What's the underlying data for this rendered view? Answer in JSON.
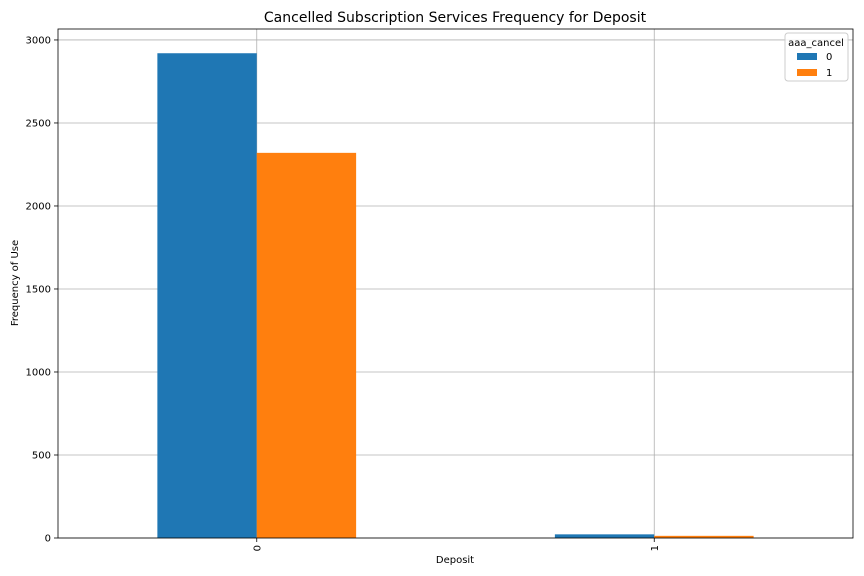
{
  "chart_data": {
    "type": "bar",
    "title": "Cancelled Subscription Services Frequency for Deposit",
    "xlabel": "Deposit",
    "ylabel": "Frequency of Use",
    "categories": [
      "0",
      "1"
    ],
    "series": [
      {
        "name": "0",
        "values": [
          2920,
          22
        ],
        "color": "#1f77b4"
      },
      {
        "name": "1",
        "values": [
          2320,
          13
        ],
        "color": "#ff7f0e"
      }
    ],
    "ylim": [
      0,
      3066
    ],
    "yticks": [
      0,
      500,
      1000,
      1500,
      2000,
      2500,
      3000
    ],
    "grid": true,
    "legend": {
      "title": "aaa_cancel",
      "position": "top-right"
    }
  }
}
